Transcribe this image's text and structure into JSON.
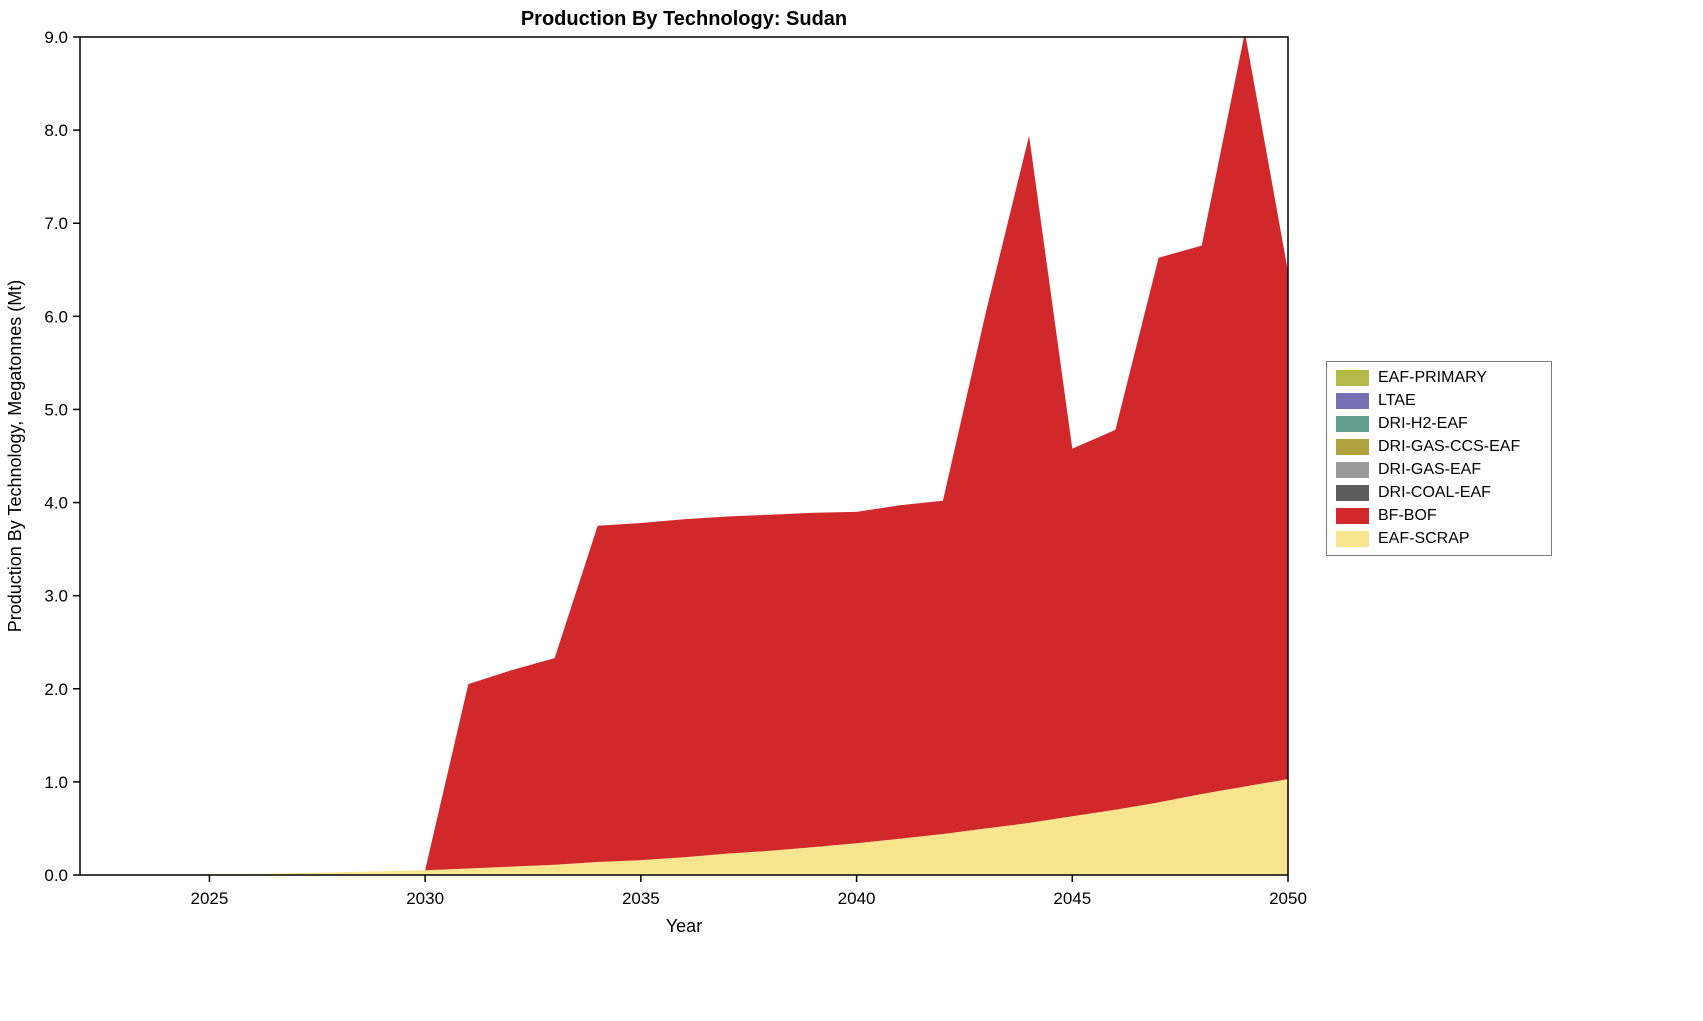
{
  "chart_data": {
    "type": "area",
    "stacked": true,
    "title": "Production By Technology: Sudan",
    "xlabel": "Year",
    "ylabel": "Production By Technology, Megatonnes (Mt)",
    "xlim": [
      2022,
      2050
    ],
    "ylim": [
      0,
      9
    ],
    "xticks": [
      2025,
      2030,
      2035,
      2040,
      2045,
      2050
    ],
    "yticks": [
      0,
      1,
      2,
      3,
      4,
      5,
      6,
      7,
      8,
      9
    ],
    "ytick_format": "one-decimal",
    "grid": false,
    "legend_position": "right-outside",
    "x": [
      2022,
      2023,
      2024,
      2025,
      2026,
      2027,
      2028,
      2029,
      2030,
      2031,
      2032,
      2033,
      2034,
      2035,
      2036,
      2037,
      2038,
      2039,
      2040,
      2041,
      2042,
      2043,
      2044,
      2045,
      2046,
      2047,
      2048,
      2049,
      2050
    ],
    "series": [
      {
        "name": "EAF-PRIMARY",
        "color": "#b4ba48",
        "values": [
          0,
          0,
          0,
          0,
          0,
          0,
          0,
          0,
          0,
          0,
          0,
          0,
          0,
          0,
          0,
          0,
          0,
          0,
          0,
          0,
          0,
          0,
          0,
          0,
          0,
          0,
          0,
          0,
          0
        ]
      },
      {
        "name": "LTAE",
        "color": "#7570b3",
        "values": [
          0,
          0,
          0,
          0,
          0,
          0,
          0,
          0,
          0,
          0,
          0,
          0,
          0,
          0,
          0,
          0,
          0,
          0,
          0,
          0,
          0,
          0,
          0,
          0,
          0,
          0,
          0,
          0,
          0
        ]
      },
      {
        "name": "DRI-H2-EAF",
        "color": "#639d8c",
        "values": [
          0,
          0,
          0,
          0,
          0,
          0,
          0,
          0,
          0,
          0,
          0,
          0,
          0,
          0,
          0,
          0,
          0,
          0,
          0,
          0,
          0,
          0,
          0,
          0,
          0,
          0,
          0,
          0,
          0
        ]
      },
      {
        "name": "DRI-GAS-CCS-EAF",
        "color": "#b0a23f",
        "values": [
          0,
          0,
          0,
          0,
          0,
          0,
          0,
          0,
          0,
          0,
          0,
          0,
          0,
          0,
          0,
          0,
          0,
          0,
          0,
          0,
          0,
          0,
          0,
          0,
          0,
          0,
          0,
          0,
          0
        ]
      },
      {
        "name": "DRI-GAS-EAF",
        "color": "#9a9a9a",
        "values": [
          0,
          0,
          0,
          0,
          0,
          0,
          0,
          0,
          0,
          0,
          0,
          0,
          0,
          0,
          0,
          0,
          0,
          0,
          0,
          0,
          0,
          0,
          0,
          0,
          0,
          0,
          0,
          0,
          0
        ]
      },
      {
        "name": "DRI-COAL-EAF",
        "color": "#5c5c5c",
        "values": [
          0,
          0,
          0,
          0,
          0,
          0,
          0,
          0,
          0,
          0,
          0,
          0,
          0,
          0,
          0,
          0,
          0,
          0,
          0,
          0,
          0,
          0,
          0,
          0,
          0,
          0,
          0,
          0,
          0
        ]
      },
      {
        "name": "BF-BOF",
        "color": "#d1282c",
        "values": [
          0,
          0,
          0,
          0,
          0,
          0,
          0,
          0,
          0,
          1.98,
          2.11,
          2.22,
          3.61,
          3.62,
          3.63,
          3.62,
          3.61,
          3.59,
          3.56,
          3.58,
          3.58,
          5.55,
          7.38,
          3.95,
          4.08,
          5.85,
          5.89,
          8.1,
          5.45
        ]
      },
      {
        "name": "EAF-SCRAP",
        "color": "#fae58f",
        "values": [
          0,
          0,
          0,
          0.01,
          0.01,
          0.02,
          0.03,
          0.04,
          0.05,
          0.07,
          0.09,
          0.11,
          0.14,
          0.16,
          0.19,
          0.23,
          0.26,
          0.3,
          0.34,
          0.39,
          0.44,
          0.5,
          0.56,
          0.63,
          0.7,
          0.78,
          0.87,
          0.95,
          1.03
        ]
      }
    ],
    "stack_order_note": "stacked bottom-to-top in reverse of listed (legend) order; EAF-SCRAP at bottom, BF-BOF above it"
  }
}
